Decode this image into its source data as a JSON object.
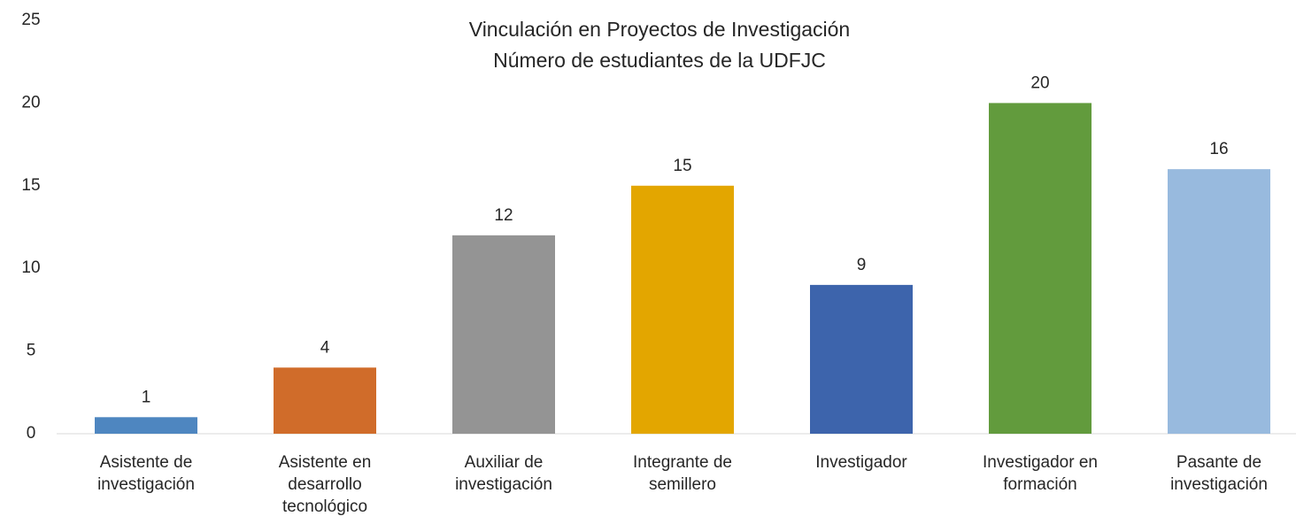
{
  "chart_data": {
    "type": "bar",
    "title": "Vinculación en Proyectos de Investigación",
    "subtitle": "Número de estudiantes de la UDFJC",
    "categories": [
      "Asistente de investigación",
      "Asistente en desarrollo tecnológico",
      "Auxiliar de investigación",
      "Integrante de semillero",
      "Investigador",
      "Investigador en formación",
      "Pasante de investigación"
    ],
    "values": [
      1,
      4,
      12,
      15,
      9,
      20,
      16
    ],
    "colors": [
      "#4e86c0",
      "#d06c2a",
      "#949494",
      "#e3a600",
      "#3d64ac",
      "#629b3d",
      "#98bade"
    ],
    "ylim": [
      0,
      25
    ],
    "yticks": [
      0,
      5,
      10,
      15,
      20,
      25
    ],
    "grid": false
  }
}
